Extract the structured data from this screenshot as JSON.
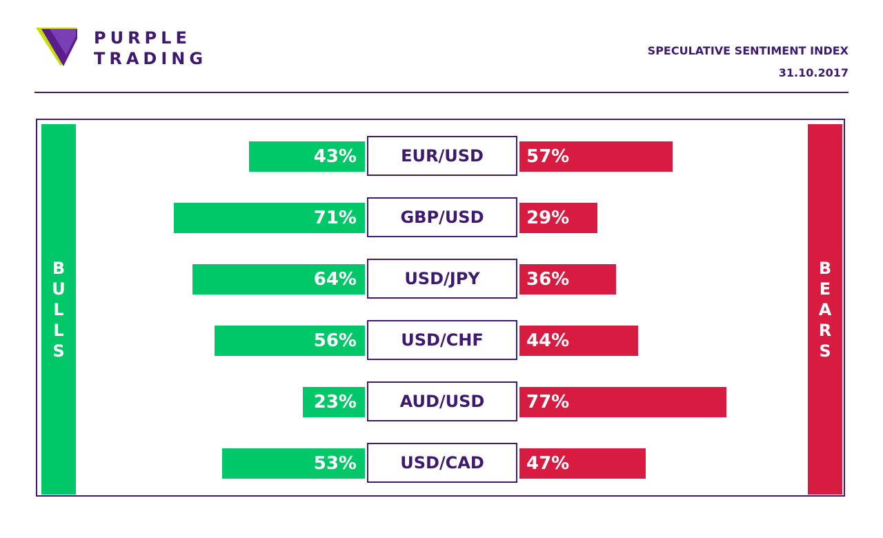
{
  "brand": {
    "line1": "PURPLE",
    "line2": "TRADING"
  },
  "header": {
    "title": "SPECULATIVE SENTIMENT INDEX",
    "date": "31.10.2017"
  },
  "colors": {
    "bull": "#00c767",
    "bear": "#d81b40",
    "purple": "#3d1a6e",
    "logo_green": "#c4e000"
  },
  "labels": {
    "bulls": "BULLS",
    "bears": "BEARS"
  },
  "chart_data": {
    "type": "bar",
    "categories": [
      "EUR/USD",
      "GBP/USD",
      "USD/JPY",
      "USD/CHF",
      "AUD/USD",
      "USD/CAD"
    ],
    "series": [
      {
        "name": "BULLS",
        "values": [
          43,
          71,
          64,
          56,
          23,
          53
        ],
        "labels": [
          "43%",
          "71%",
          "64%",
          "56%",
          "23%",
          "53%"
        ]
      },
      {
        "name": "BEARS",
        "values": [
          57,
          29,
          36,
          44,
          77,
          47
        ],
        "labels": [
          "57%",
          "29%",
          "36%",
          "44%",
          "77%",
          "47%"
        ]
      }
    ],
    "title": "SPECULATIVE SENTIMENT INDEX",
    "ylim": [
      0,
      100
    ]
  }
}
